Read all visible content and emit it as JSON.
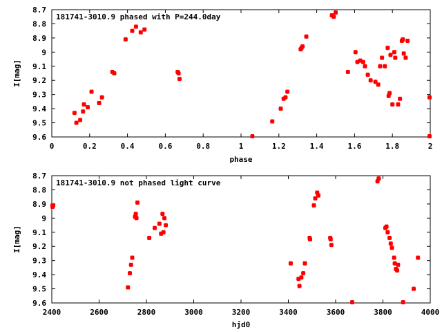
{
  "chart_data": [
    {
      "type": "scatter",
      "title": "181741-3010.9 phased with P=244.0day",
      "xlabel": "phase",
      "ylabel": "I[mag]",
      "xlim": [
        0,
        2
      ],
      "ylim": [
        9.6,
        8.7
      ],
      "y_inverted": true,
      "x_ticks": [
        "0",
        "0.2",
        "0.4",
        "0.6",
        "0.8",
        "1",
        "1.2",
        "1.4",
        "1.6",
        "1.8",
        "2"
      ],
      "y_ticks": [
        "8.7",
        "8.8",
        "8.9",
        "9",
        "9.1",
        "9.2",
        "9.3",
        "9.4",
        "9.5",
        "9.6"
      ],
      "grid": false,
      "color": "#ff0000",
      "series": [
        {
          "x": [
            0.12,
            0.13,
            0.15,
            0.165,
            0.17,
            0.19,
            0.21,
            0.25,
            0.265,
            0.32,
            0.33,
            0.39,
            0.425,
            0.445,
            0.47,
            0.49,
            0.665,
            0.67,
            0.675,
            1.06,
            1.165,
            1.21,
            1.225,
            1.235,
            1.245,
            1.315,
            1.32,
            1.325,
            1.345,
            1.48,
            1.49,
            1.5,
            1.565,
            1.605,
            1.615,
            1.63,
            1.645,
            1.655,
            1.67,
            1.685,
            1.71,
            1.725,
            1.735,
            1.745,
            1.76,
            1.775,
            1.78,
            1.785,
            1.79,
            1.8,
            1.81,
            1.815,
            1.83,
            1.84,
            1.85,
            1.855,
            1.86,
            1.87,
            1.88,
            2.0,
            2.0
          ],
          "y": [
            9.43,
            9.5,
            9.48,
            9.42,
            9.37,
            9.39,
            9.28,
            9.36,
            9.32,
            9.14,
            9.15,
            8.91,
            8.85,
            8.82,
            8.86,
            8.84,
            9.14,
            9.15,
            9.19,
            9.6,
            9.49,
            9.4,
            9.33,
            9.32,
            9.28,
            8.98,
            8.97,
            8.96,
            8.89,
            8.74,
            8.75,
            8.72,
            9.14,
            9.0,
            9.07,
            9.06,
            9.07,
            9.1,
            9.16,
            9.2,
            9.21,
            9.23,
            9.1,
            9.04,
            9.1,
            8.97,
            9.31,
            9.29,
            9.02,
            9.37,
            9.0,
            9.04,
            9.37,
            9.33,
            8.92,
            8.91,
            9.01,
            9.04,
            8.92,
            9.32,
            9.6
          ]
        }
      ]
    },
    {
      "type": "scatter",
      "title": "181741-3010.9 not phased light curve",
      "xlabel": "hjd0",
      "ylabel": "I[mag]",
      "xlim": [
        2400,
        4000
      ],
      "ylim": [
        9.6,
        8.7
      ],
      "y_inverted": true,
      "x_ticks": [
        "2400",
        "2600",
        "2800",
        "3000",
        "3200",
        "3400",
        "3600",
        "3800",
        "4000"
      ],
      "y_ticks": [
        "8.7",
        "8.8",
        "8.9",
        "9",
        "9.1",
        "9.2",
        "9.3",
        "9.4",
        "9.5",
        "9.6"
      ],
      "grid": false,
      "color": "#ff0000",
      "series": [
        {
          "x": [
            2400,
            2403,
            2406,
            2722,
            2730,
            2735,
            2740,
            2752,
            2755,
            2758,
            2762,
            2812,
            2835,
            2855,
            2862,
            2868,
            2872,
            2876,
            2882,
            3410,
            3443,
            3447,
            3455,
            3463,
            3470,
            3490,
            3492,
            3508,
            3514,
            3522,
            3527,
            3577,
            3579,
            3582,
            3670,
            3777,
            3782,
            3810,
            3815,
            3820,
            3828,
            3833,
            3838,
            3847,
            3850,
            3855,
            3860,
            3864,
            3885,
            3930,
            3948
          ],
          "y": [
            8.91,
            8.92,
            8.91,
            9.49,
            9.39,
            9.33,
            9.28,
            8.99,
            8.97,
            9.0,
            8.89,
            9.14,
            9.07,
            9.04,
            9.11,
            8.97,
            9.1,
            9.0,
            9.05,
            9.32,
            9.43,
            9.48,
            9.42,
            9.39,
            9.32,
            9.14,
            9.15,
            8.91,
            8.86,
            8.82,
            8.84,
            9.14,
            9.15,
            9.19,
            9.6,
            8.74,
            8.72,
            9.07,
            9.06,
            9.1,
            9.14,
            9.18,
            9.21,
            9.28,
            9.32,
            9.36,
            9.37,
            9.33,
            9.6,
            9.5,
            9.28
          ]
        }
      ]
    }
  ]
}
